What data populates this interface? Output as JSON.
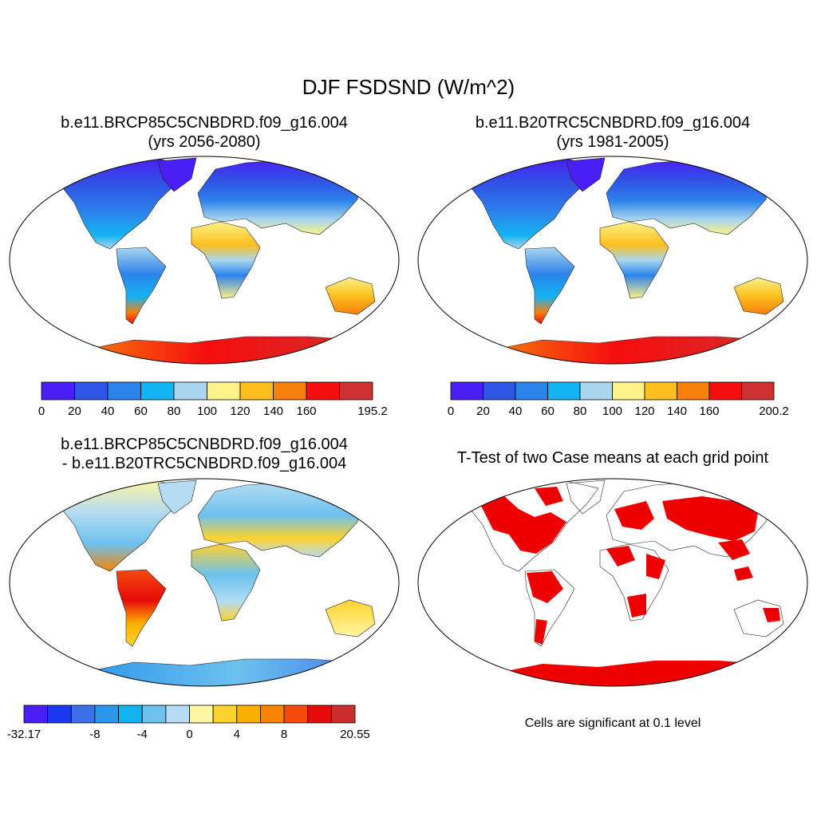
{
  "title": "DJF FSDSND (W/m^2)",
  "panels": [
    {
      "id": "case",
      "title_line1": "b.e11.BRCP85C5CNBDRD.f09_g16.004",
      "title_line2": "(yrs 2056-2080)",
      "colorbar": {
        "colors": [
          "#4a1ff5",
          "#2f55e6",
          "#2c83ea",
          "#14b4f2",
          "#a9d6ee",
          "#fdf28a",
          "#fbbf1e",
          "#f7800c",
          "#f50e0e",
          "#cd3131"
        ],
        "labels": [
          "0",
          "20",
          "40",
          "60",
          "80",
          "100",
          "120",
          "140",
          "160",
          "195.2"
        ]
      }
    },
    {
      "id": "control",
      "title_line1": "b.e11.B20TRC5CNBDRD.f09_g16.004",
      "title_line2": "(yrs 1981-2005)",
      "colorbar": {
        "colors": [
          "#4a1ff5",
          "#2f55e6",
          "#2c83ea",
          "#14b4f2",
          "#a9d6ee",
          "#fdf28a",
          "#fbbf1e",
          "#f7800c",
          "#f50e0e",
          "#cd3131"
        ],
        "labels": [
          "0",
          "20",
          "40",
          "60",
          "80",
          "100",
          "120",
          "140",
          "160",
          "200.2"
        ]
      }
    },
    {
      "id": "difference",
      "title_line1": "b.e11.BRCP85C5CNBDRD.f09_g16.004",
      "title_line2": "- b.e11.B20TRC5CNBDRD.f09_g16.004",
      "colorbar": {
        "colors": [
          "#4a1ff5",
          "#1a38f0",
          "#3d6fe6",
          "#2c96ea",
          "#12b2ef",
          "#6cc1ee",
          "#b5dcf2",
          "#fdf6a2",
          "#fdd22e",
          "#fbb000",
          "#f88400",
          "#f44a0c",
          "#e60a0a",
          "#cc2d2d"
        ],
        "labels": [
          "-32.17",
          "",
          "",
          "-8",
          "",
          "-4",
          "",
          "0",
          "",
          "4",
          "",
          "8",
          "",
          "20.55"
        ]
      }
    },
    {
      "id": "ttest",
      "title_line1": "T-Test of two Case means at each grid point",
      "note": "Cells are significant at 0.1 level",
      "significant_color": "#ee0000"
    }
  ]
}
